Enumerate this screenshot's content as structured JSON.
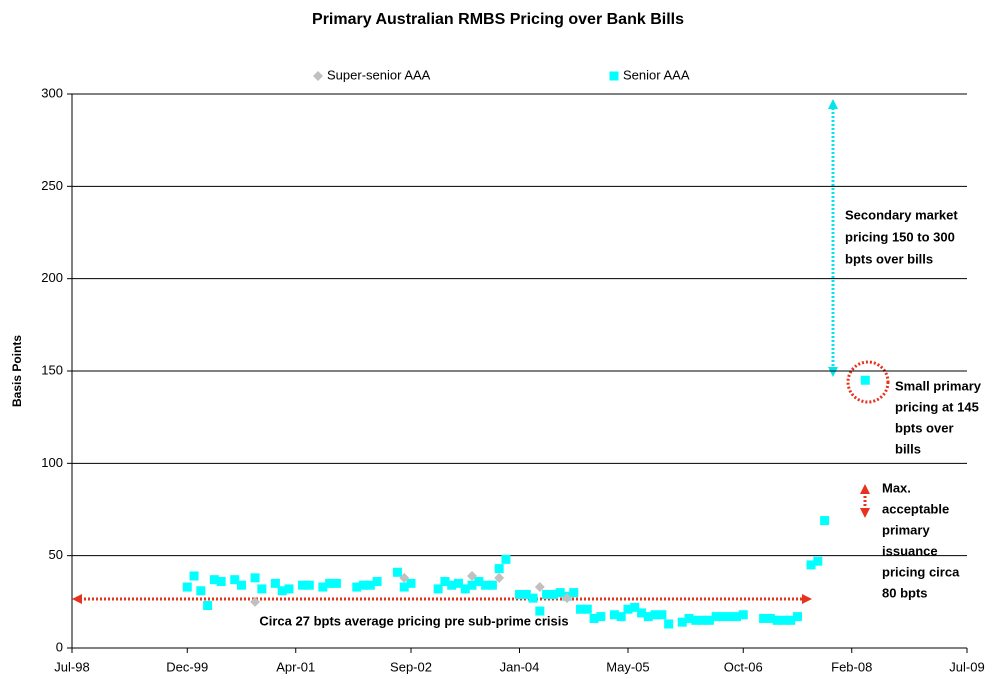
{
  "chart_data": {
    "type": "scatter",
    "title": "Primary Australian RMBS Pricing over Bank Bills",
    "y_label": "Basis Points",
    "xlim": [
      "1998-07",
      "2009-07"
    ],
    "xticks": [
      {
        "value": "1998-07",
        "label": "Jul-98"
      },
      {
        "value": "1999-12",
        "label": "Dec-99"
      },
      {
        "value": "2001-04",
        "label": "Apr-01"
      },
      {
        "value": "2002-09",
        "label": "Sep-02"
      },
      {
        "value": "2004-01",
        "label": "Jan-04"
      },
      {
        "value": "2005-05",
        "label": "May-05"
      },
      {
        "value": "2006-10",
        "label": "Oct-06"
      },
      {
        "value": "2008-02",
        "label": "Feb-08"
      },
      {
        "value": "2009-07",
        "label": "Jul-09"
      }
    ],
    "ylim": [
      0,
      300
    ],
    "yticks": [
      0,
      50,
      100,
      150,
      200,
      250,
      300
    ],
    "grid": true,
    "legend": "top",
    "series": [
      {
        "name": "Super-senior AAA",
        "color": "#c0c0c0",
        "marker": "diamond",
        "x": [
          "2000-10",
          "2002-08",
          "2003-06",
          "2003-10",
          "2004-04",
          "2004-08"
        ],
        "values": [
          25,
          38,
          39,
          38,
          33,
          27
        ]
      },
      {
        "name": "Senior AAA",
        "color": "#00ffff",
        "marker": "square",
        "x": [
          "1999-12",
          "2000-01",
          "2000-02",
          "2000-03",
          "2000-04",
          "2000-05",
          "2000-07",
          "2000-08",
          "2000-10",
          "2000-11",
          "2001-01",
          "2001-02",
          "2001-03",
          "2001-05",
          "2001-06",
          "2001-08",
          "2001-09",
          "2001-10",
          "2002-01",
          "2002-02",
          "2002-03",
          "2002-04",
          "2002-07",
          "2002-08",
          "2002-09",
          "2003-01",
          "2003-02",
          "2003-03",
          "2003-04",
          "2003-05",
          "2003-06",
          "2003-07",
          "2003-08",
          "2003-09",
          "2003-10",
          "2003-11",
          "2004-01",
          "2004-02",
          "2004-03",
          "2004-04",
          "2004-05",
          "2004-06",
          "2004-07",
          "2004-08",
          "2004-09",
          "2004-10",
          "2004-11",
          "2004-12",
          "2005-01",
          "2005-03",
          "2005-04",
          "2005-05",
          "2005-06",
          "2005-07",
          "2005-08",
          "2005-09",
          "2005-10",
          "2005-11",
          "2006-01",
          "2006-02",
          "2006-03",
          "2006-04",
          "2006-05",
          "2006-06",
          "2006-07",
          "2006-08",
          "2006-09",
          "2006-10",
          "2007-01",
          "2007-02",
          "2007-03",
          "2007-04",
          "2007-05",
          "2007-06",
          "2007-08",
          "2007-09",
          "2007-10",
          "2008-04"
        ],
        "values": [
          33,
          39,
          31,
          23,
          37,
          36,
          37,
          34,
          38,
          32,
          35,
          31,
          32,
          34,
          34,
          33,
          35,
          35,
          33,
          34,
          34,
          36,
          41,
          33,
          35,
          32,
          36,
          34,
          35,
          32,
          34,
          36,
          34,
          34,
          43,
          48,
          29,
          29,
          27,
          20,
          29,
          29,
          30,
          28,
          30,
          21,
          21,
          16,
          17,
          18,
          17,
          21,
          22,
          19,
          17,
          18,
          18,
          13,
          14,
          16,
          15,
          15,
          15,
          17,
          17,
          17,
          17,
          18,
          16,
          16,
          15,
          15,
          15,
          17,
          45,
          47,
          69,
          145
        ]
      }
    ],
    "annotations": {
      "average": "Circa 27 bpts average pricing pre sub-prime crisis",
      "secondary": [
        "Secondary market",
        "pricing 150 to 300",
        "bpts over bills"
      ],
      "small_primary": [
        "Small primary",
        "pricing at 145",
        "bpts over",
        "bills"
      ],
      "max_acceptable": [
        "Max.",
        "acceptable",
        "primary",
        "issuance",
        "pricing circa",
        "80 bpts"
      ]
    }
  }
}
